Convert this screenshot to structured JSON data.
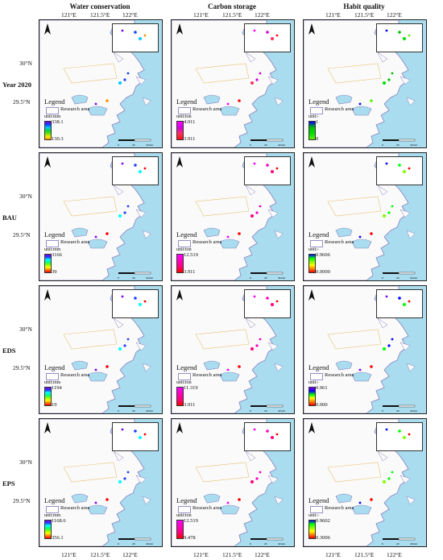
{
  "columns": [
    "Water conservation",
    "Carbon storage",
    "Habit quality"
  ],
  "lon_labels": [
    "121°E",
    "121.5°E",
    "122°E"
  ],
  "lat_labels": [
    "30°N",
    "29.5°N"
  ],
  "rows": [
    {
      "label": "Year 2020",
      "panels": [
        {
          "unit": "unit:mm",
          "max": "338.1",
          "min": "130.3",
          "ramp": [
            "#7a00ff",
            "#1040ff",
            "#00c8ff",
            "#10d040",
            "#60e000",
            "#f0f000",
            "#ff9000"
          ]
        },
        {
          "unit": "unit:ton",
          "max": "4.911",
          "min": "3.911",
          "ramp": [
            "#ff00ff",
            "#d000e0",
            "#ff3060",
            "#ff1010"
          ]
        },
        {
          "unit": "unit:-",
          "max": "1",
          "min": "0",
          "ramp": [
            "#0000ff",
            "#00c000",
            "#00e000",
            "#60f000"
          ]
        }
      ]
    },
    {
      "label": "BAU",
      "panels": [
        {
          "unit": "unit:mm",
          "max": "3166",
          "min": "39",
          "ramp": [
            "#8000ff",
            "#2040ff",
            "#00ffff",
            "#00ff80",
            "#80ff00",
            "#ffff00",
            "#ff8000",
            "#ff0000"
          ]
        },
        {
          "unit": "unit:ton",
          "max": "12.519",
          "min": "3.911",
          "ramp": [
            "#ff00ff",
            "#ff00c0",
            "#ff0080",
            "#ff0000"
          ]
        },
        {
          "unit": "unit:-",
          "max": "0.9606",
          "min": "0.0000",
          "ramp": [
            "#0000ff",
            "#00ff00",
            "#80ff00",
            "#ffff00",
            "#ff8000",
            "#ff0000"
          ]
        }
      ]
    },
    {
      "label": "EDS",
      "panels": [
        {
          "unit": "unit:mm",
          "max": "1194",
          "min": "19",
          "ramp": [
            "#8000ff",
            "#2040ff",
            "#00ffff",
            "#00ff80",
            "#80ff00",
            "#ffff00",
            "#ff8000",
            "#ff0000"
          ]
        },
        {
          "unit": "unit:ton",
          "max": "11.319",
          "min": "3.911",
          "ramp": [
            "#ff00ff",
            "#ff00c0",
            "#ff0080",
            "#ff0000"
          ]
        },
        {
          "unit": "unit:-",
          "max": "0.961",
          "min": "0.000",
          "ramp": [
            "#8000ff",
            "#0000ff",
            "#00ff00",
            "#ffff00",
            "#ff8000",
            "#ff0000"
          ]
        }
      ]
    },
    {
      "label": "EPS",
      "panels": [
        {
          "unit": "unit:mm",
          "max": "1168.6",
          "min": "356.1",
          "ramp": [
            "#8000ff",
            "#2040ff",
            "#00ffff",
            "#00ff80",
            "#80ff00",
            "#ffff00",
            "#ff8000",
            "#ff0000"
          ]
        },
        {
          "unit": "unit:ton",
          "max": "12.519",
          "min": "9.478",
          "ramp": [
            "#ff00ff",
            "#ff00c0",
            "#ff0080",
            "#ff0000"
          ]
        },
        {
          "unit": "unit:-",
          "max": "0.9602",
          "min": "0.3006",
          "ramp": [
            "#0000ff",
            "#00ff00",
            "#80ff00",
            "#ffff00",
            "#ff8000",
            "#ff0000"
          ]
        }
      ]
    }
  ],
  "legend_title": "Legend",
  "research_area_label": "Research area",
  "scale_labels": [
    "0",
    "20",
    "40 km"
  ],
  "colors": {
    "sea": "#a8dcee",
    "land": "#fafafa",
    "coast": "#8b80c0",
    "boundary": "#e8c070"
  }
}
